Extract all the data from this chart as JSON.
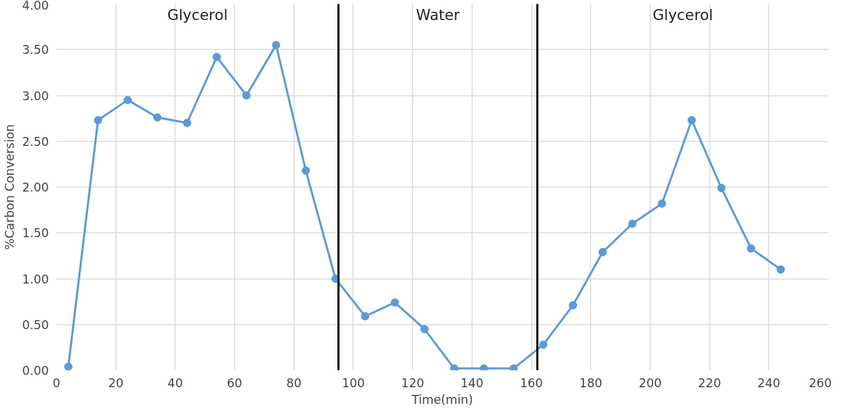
{
  "chart_data": {
    "type": "line",
    "xlabel": "Time(min)",
    "ylabel": "%Carbon Conversion",
    "x": [
      4,
      14,
      24,
      34,
      44,
      54,
      64,
      74,
      84,
      94,
      104,
      114,
      124,
      134,
      144,
      154,
      164,
      174,
      184,
      194,
      204,
      214,
      224,
      234,
      244
    ],
    "series": [
      {
        "color": "#5b9bd5",
        "values": [
          0.04,
          2.73,
          2.95,
          2.76,
          2.7,
          3.42,
          3.0,
          3.55,
          2.18,
          1.0,
          0.59,
          0.74,
          0.45,
          0.02,
          0.02,
          0.02,
          0.28,
          0.71,
          1.29,
          1.6,
          1.82,
          2.73,
          1.99,
          1.33,
          1.1
        ]
      }
    ],
    "xlim": [
      0,
      260
    ],
    "xticks": [
      0,
      20,
      40,
      60,
      80,
      100,
      120,
      140,
      160,
      180,
      200,
      220,
      240,
      260
    ],
    "ylim": [
      0,
      4
    ],
    "yticks": [
      {
        "value": 0,
        "label": "0.00"
      },
      {
        "value": 0.5,
        "label": "0.50"
      },
      {
        "value": 1,
        "label": "1.00"
      },
      {
        "value": 1.5,
        "label": "1.50"
      },
      {
        "value": 2,
        "label": "2.00"
      },
      {
        "value": 2.5,
        "label": "2.50"
      },
      {
        "value": 3,
        "label": "3.00"
      },
      {
        "value": 3.5,
        "label": "3.50"
      },
      {
        "value": 4,
        "label": "4.00"
      }
    ],
    "ref_lines": [
      {
        "axis": "x",
        "value": 95,
        "color": "#000000"
      },
      {
        "axis": "x",
        "value": 162,
        "color": "#000000"
      }
    ],
    "annotations": [
      "Glycerol",
      "Water",
      "Glycerol"
    ],
    "grid": true,
    "marker": "circle",
    "line_style": "solid"
  }
}
